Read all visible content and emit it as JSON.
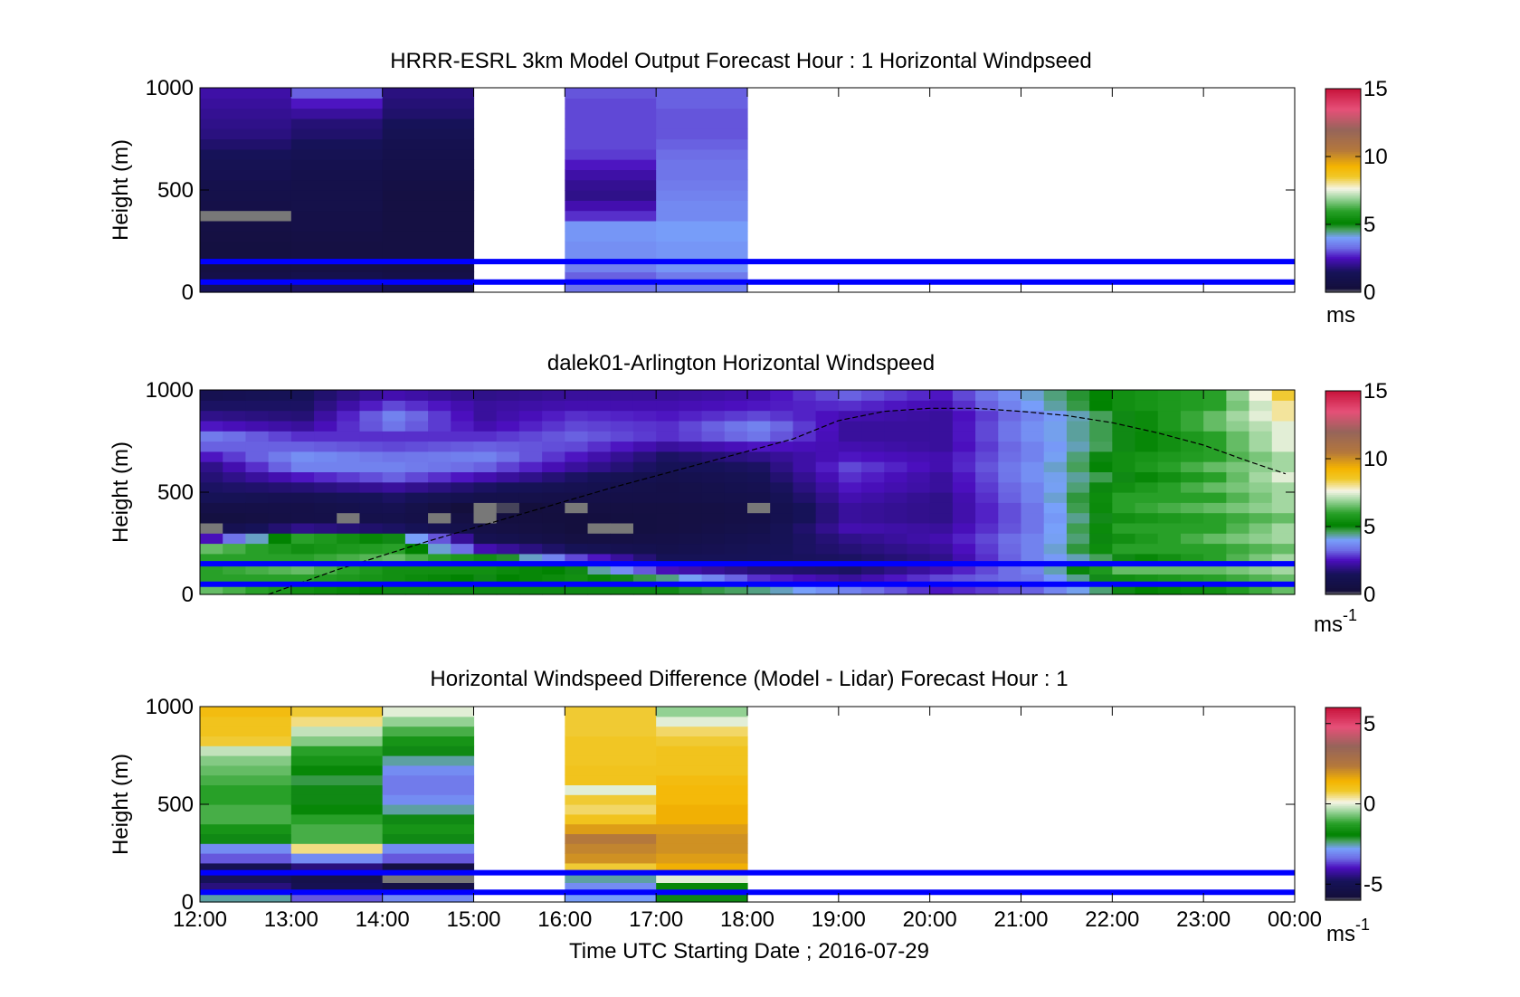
{
  "figure": {
    "xlabel": "Time UTC  Starting Date ; 2016-07-29",
    "x_ticks": [
      "12:00",
      "13:00",
      "14:00",
      "15:00",
      "16:00",
      "17:00",
      "18:00",
      "19:00",
      "20:00",
      "21:00",
      "22:00",
      "23:00",
      "00:00"
    ],
    "reference_heights_m": [
      50,
      150
    ],
    "reference_line_color": "#0000ff"
  },
  "chart_data": [
    {
      "type": "heatmap",
      "title": "HRRR-ESRL 3km Model Output   Forecast Hour : 1 Horizontal Windpseed",
      "ylabel": "Height (m)",
      "yticks": [
        0,
        500,
        1000
      ],
      "ylim": [
        0,
        1000
      ],
      "x_range_hours": [
        12,
        24
      ],
      "colorbar": {
        "range": [
          0,
          15
        ],
        "ticks": [
          "0",
          "5",
          "10",
          "15"
        ],
        "label": "ms",
        "label_sup": ""
      },
      "time_columns_hours": [
        12,
        13,
        14,
        16,
        17
      ],
      "heights_m": [
        25,
        75,
        125,
        175,
        225,
        275,
        325,
        375,
        425,
        475,
        525,
        575,
        625,
        675,
        725,
        775,
        825,
        875,
        925,
        975
      ],
      "values": [
        [
          1.5,
          1.6,
          1.2,
          3.4,
          3.6
        ],
        [
          0.8,
          1.0,
          0.8,
          3.2,
          3.5
        ],
        [
          0.6,
          0.7,
          0.6,
          3.6,
          3.9
        ],
        [
          0.5,
          0.6,
          0.6,
          3.8,
          3.9
        ],
        [
          0.5,
          0.6,
          0.6,
          3.8,
          3.9
        ],
        [
          0.6,
          0.7,
          0.6,
          3.9,
          4.0
        ],
        [
          0.7,
          0.8,
          0.6,
          3.9,
          4.0
        ],
        [
          0.0,
          0.8,
          0.6,
          2.8,
          3.7
        ],
        [
          0.8,
          0.9,
          0.6,
          2.4,
          3.7
        ],
        [
          0.9,
          0.9,
          0.6,
          2.0,
          3.6
        ],
        [
          1.0,
          0.9,
          0.7,
          2.1,
          3.5
        ],
        [
          1.2,
          1.0,
          0.8,
          2.3,
          3.4
        ],
        [
          1.3,
          1.1,
          0.9,
          2.6,
          3.4
        ],
        [
          1.5,
          1.3,
          1.0,
          2.9,
          3.3
        ],
        [
          1.7,
          1.5,
          1.1,
          3.0,
          3.2
        ],
        [
          1.9,
          1.7,
          1.3,
          3.0,
          3.1
        ],
        [
          2.0,
          1.8,
          1.5,
          3.0,
          3.1
        ],
        [
          2.1,
          2.2,
          1.7,
          3.0,
          3.1
        ],
        [
          2.2,
          2.6,
          1.8,
          3.0,
          3.2
        ],
        [
          2.3,
          3.2,
          1.9,
          3.1,
          3.2
        ]
      ]
    },
    {
      "type": "heatmap",
      "title": "dalek01-Arlington  Horizontal Windspeed",
      "ylabel": "Height (m)",
      "yticks": [
        0,
        500,
        1000
      ],
      "ylim": [
        0,
        1000
      ],
      "x_range_hours": [
        12,
        24
      ],
      "colorbar": {
        "range": [
          0,
          15
        ],
        "ticks": [
          "0",
          "5",
          "10",
          "15"
        ],
        "label": "ms",
        "label_sup": "-1"
      },
      "time_start_hour": 12.0,
      "time_step_hours": 0.25,
      "time_end_hour": 23.75,
      "heights_m": [
        25,
        75,
        125,
        175,
        225,
        275,
        325,
        375,
        425,
        475,
        525,
        575,
        625,
        675,
        725,
        775,
        825,
        875,
        925,
        975
      ],
      "key_times_hours": [
        12,
        13,
        14,
        15,
        16,
        17,
        18,
        19,
        20,
        21,
        22,
        23,
        23.75
      ],
      "key_profiles": [
        [
          6.5,
          6.0,
          6.0,
          6.0,
          6.5,
          2.5,
          1.0,
          0.5,
          0.8,
          1.4,
          1.6,
          1.8,
          2.0,
          2.6,
          3.2,
          3.5,
          2.6,
          2.0,
          1.6,
          1.2
        ],
        [
          5.5,
          6.0,
          6.5,
          6.0,
          5.5,
          6.0,
          2.0,
          0.8,
          0.8,
          1.2,
          1.8,
          2.6,
          3.6,
          3.8,
          3.2,
          2.8,
          2.2,
          1.8,
          1.6,
          1.5
        ],
        [
          5.0,
          5.5,
          5.5,
          6.5,
          6.0,
          5.0,
          1.6,
          1.0,
          1.2,
          1.6,
          2.2,
          3.2,
          3.6,
          3.4,
          3.0,
          2.8,
          3.4,
          3.6,
          3.0,
          2.4
        ],
        [
          5.0,
          5.0,
          5.5,
          5.5,
          2.4,
          1.2,
          0.8,
          0.5,
          0.0,
          1.0,
          1.6,
          2.4,
          3.2,
          3.6,
          3.2,
          2.8,
          2.4,
          2.2,
          2.2,
          2.0
        ],
        [
          5.0,
          5.5,
          5.0,
          3.0,
          1.4,
          0.6,
          0.4,
          0.4,
          0.6,
          0.8,
          1.2,
          1.6,
          2.2,
          2.6,
          3.0,
          3.2,
          3.0,
          2.8,
          2.4,
          2.2
        ],
        [
          5.0,
          4.5,
          2.5,
          1.4,
          1.0,
          0.8,
          0.6,
          0.6,
          0.6,
          0.8,
          0.8,
          1.0,
          1.4,
          1.6,
          2.2,
          2.8,
          2.8,
          2.6,
          2.4,
          2.2
        ],
        [
          4.5,
          2.8,
          1.8,
          1.5,
          1.4,
          1.2,
          1.0,
          0.8,
          0.8,
          1.0,
          1.2,
          1.4,
          1.6,
          2.0,
          2.6,
          3.4,
          3.6,
          3.0,
          2.6,
          2.4
        ],
        [
          3.6,
          2.2,
          1.6,
          1.6,
          1.8,
          2.0,
          2.4,
          2.2,
          2.2,
          2.4,
          2.6,
          2.8,
          3.0,
          2.6,
          2.4,
          2.2,
          2.2,
          2.4,
          2.8,
          3.2
        ],
        [
          2.6,
          3.0,
          2.4,
          2.0,
          2.2,
          2.4,
          2.2,
          2.0,
          2.0,
          2.0,
          2.2,
          2.2,
          2.4,
          2.4,
          2.2,
          2.2,
          2.2,
          2.2,
          2.4,
          2.6
        ],
        [
          3.2,
          3.4,
          3.6,
          3.6,
          3.6,
          3.6,
          3.4,
          3.4,
          3.4,
          3.6,
          3.6,
          3.8,
          3.8,
          3.6,
          3.6,
          3.8,
          3.8,
          3.6,
          4.0,
          4.2
        ],
        [
          5.0,
          5.5,
          6.5,
          5.0,
          6.0,
          5.5,
          6.0,
          5.5,
          6.0,
          6.0,
          5.5,
          5.0,
          5.5,
          5.5,
          5.0,
          5.0,
          5.0,
          5.0,
          5.5,
          5.5
        ],
        [
          5.5,
          6.0,
          6.5,
          6.0,
          6.0,
          6.5,
          6.0,
          6.0,
          6.5,
          6.0,
          6.5,
          6.0,
          6.5,
          6.0,
          6.0,
          6.0,
          6.5,
          6.5,
          6.0,
          6.0
        ],
        [
          6.5,
          6.5,
          7.0,
          7.0,
          6.5,
          7.0,
          7.0,
          6.5,
          7.0,
          7.0,
          7.0,
          7.5,
          7.0,
          7.0,
          7.5,
          7.5,
          7.5,
          8.0,
          8.0,
          8.5
        ]
      ],
      "missing_cells": [
        [
          12.0,
          325
        ],
        [
          13.5,
          375
        ],
        [
          14.5,
          375
        ],
        [
          15.0,
          375
        ],
        [
          15.0,
          425
        ],
        [
          16.0,
          425
        ],
        [
          16.25,
          325
        ],
        [
          16.5,
          325
        ],
        [
          18.0,
          425
        ]
      ],
      "boundary_layer_curve": {
        "x_hours": [
          12.75,
          13.5,
          14.5,
          15.5,
          16.5,
          17.5,
          18.5,
          19.0,
          19.5,
          20.0,
          20.5,
          21.0,
          21.5,
          22.0,
          22.5,
          23.0,
          23.5,
          23.9
        ],
        "y_m": [
          0,
          120,
          260,
          390,
          520,
          640,
          760,
          850,
          895,
          910,
          910,
          895,
          875,
          840,
          790,
          730,
          650,
          590
        ]
      }
    },
    {
      "type": "heatmap",
      "title": "Horizontal Windspeed Difference (Model - Lidar) Forecast Hour : 1",
      "ylabel": "Height (m)",
      "yticks": [
        0,
        500,
        1000
      ],
      "ylim": [
        0,
        1000
      ],
      "x_range_hours": [
        12,
        24
      ],
      "colorbar": {
        "range": [
          -6,
          6
        ],
        "ticks": [
          "-5",
          "0",
          "5"
        ],
        "label": "ms",
        "label_sup": "-1"
      },
      "time_columns_hours": [
        12,
        13,
        14,
        16,
        17
      ],
      "heights_m": [
        25,
        75,
        125,
        175,
        225,
        275,
        325,
        375,
        425,
        475,
        525,
        575,
        625,
        675,
        725,
        775,
        825,
        875,
        925,
        975
      ],
      "values": [
        [
          -2.5,
          -3.5,
          -3.0,
          -2.8,
          -2.0
        ],
        [
          -4.5,
          -5.0,
          -5.5,
          -3.0,
          -1.8
        ],
        [
          -4.8,
          -5.2,
          -6.0,
          -2.5,
          0.0
        ],
        [
          -5.0,
          -4.5,
          -5.5,
          0.8,
          1.5
        ],
        [
          -3.5,
          -3.0,
          -3.5,
          2.0,
          1.8
        ],
        [
          -3.0,
          0.5,
          -3.0,
          2.2,
          2.0
        ],
        [
          -2.0,
          -1.0,
          -2.0,
          2.4,
          2.0
        ],
        [
          -1.5,
          -1.0,
          -1.5,
          1.8,
          1.8
        ],
        [
          -1.0,
          -1.2,
          -2.0,
          1.0,
          1.5
        ],
        [
          -1.0,
          -1.8,
          -2.5,
          0.6,
          1.5
        ],
        [
          -1.2,
          -2.0,
          -3.0,
          0.8,
          1.3
        ],
        [
          -1.2,
          -2.0,
          -3.2,
          0.0,
          1.3
        ],
        [
          -1.0,
          -2.2,
          -3.2,
          1.0,
          1.2
        ],
        [
          -0.8,
          -1.8,
          -3.0,
          1.0,
          1.0
        ],
        [
          -0.6,
          -1.5,
          -2.5,
          0.9,
          1.0
        ],
        [
          -0.2,
          -1.2,
          -2.0,
          0.9,
          1.0
        ],
        [
          0.8,
          -0.6,
          -1.5,
          0.9,
          0.8
        ],
        [
          1.0,
          -0.2,
          -1.0,
          0.8,
          0.6
        ],
        [
          1.0,
          0.5,
          -0.5,
          0.8,
          0.0
        ],
        [
          1.2,
          0.8,
          0.0,
          0.8,
          -0.5
        ]
      ]
    }
  ]
}
